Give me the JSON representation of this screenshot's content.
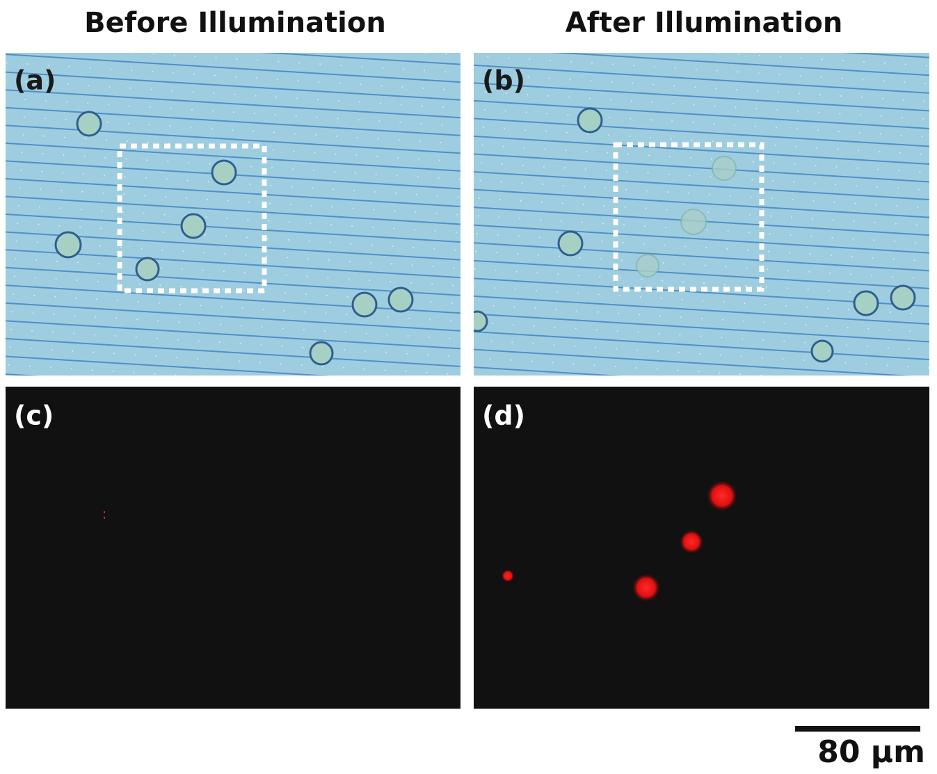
{
  "columns": [
    "Before Illumination",
    "After Illumination"
  ],
  "panels": [
    {
      "label": "(a)"
    },
    {
      "label": "(b)"
    },
    {
      "label": "(c)"
    },
    {
      "label": "(d)"
    }
  ],
  "scale_bar": {
    "label": "80 µm"
  }
}
